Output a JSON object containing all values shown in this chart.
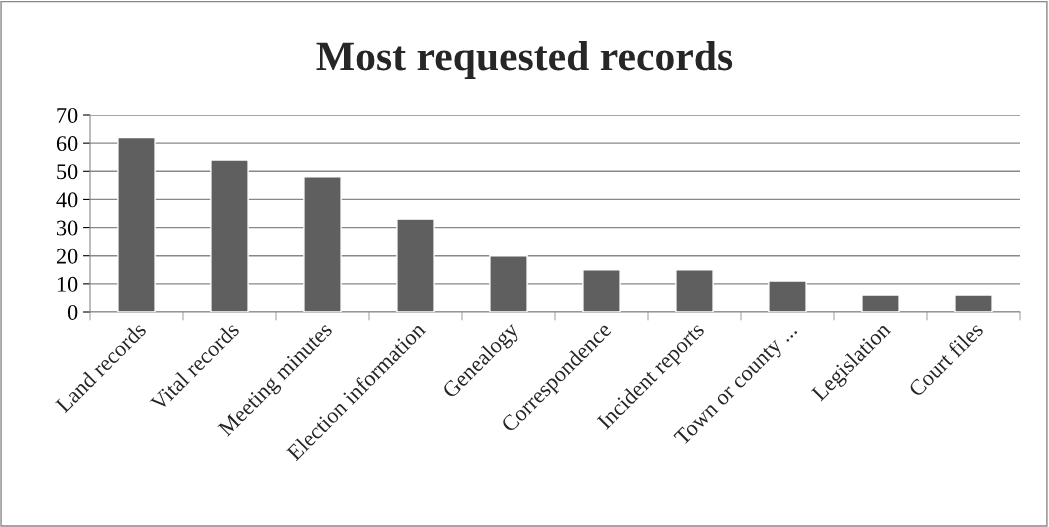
{
  "chart_data": {
    "type": "bar",
    "title": "Most requested records",
    "categories": [
      "Land records",
      "Vital records",
      "Meeting minutes",
      "Election information",
      "Genealogy",
      "Correspondence",
      "Incident reports",
      "Town or county ...",
      "Legislation",
      "Court files"
    ],
    "values": [
      62,
      54,
      48,
      33,
      20,
      15,
      15,
      11,
      6,
      6
    ],
    "color": "#5f5f5f",
    "ylim": [
      0,
      70
    ],
    "yticks": [
      0,
      10,
      20,
      30,
      40,
      50,
      60,
      70
    ],
    "grid": "y",
    "legend": false
  }
}
